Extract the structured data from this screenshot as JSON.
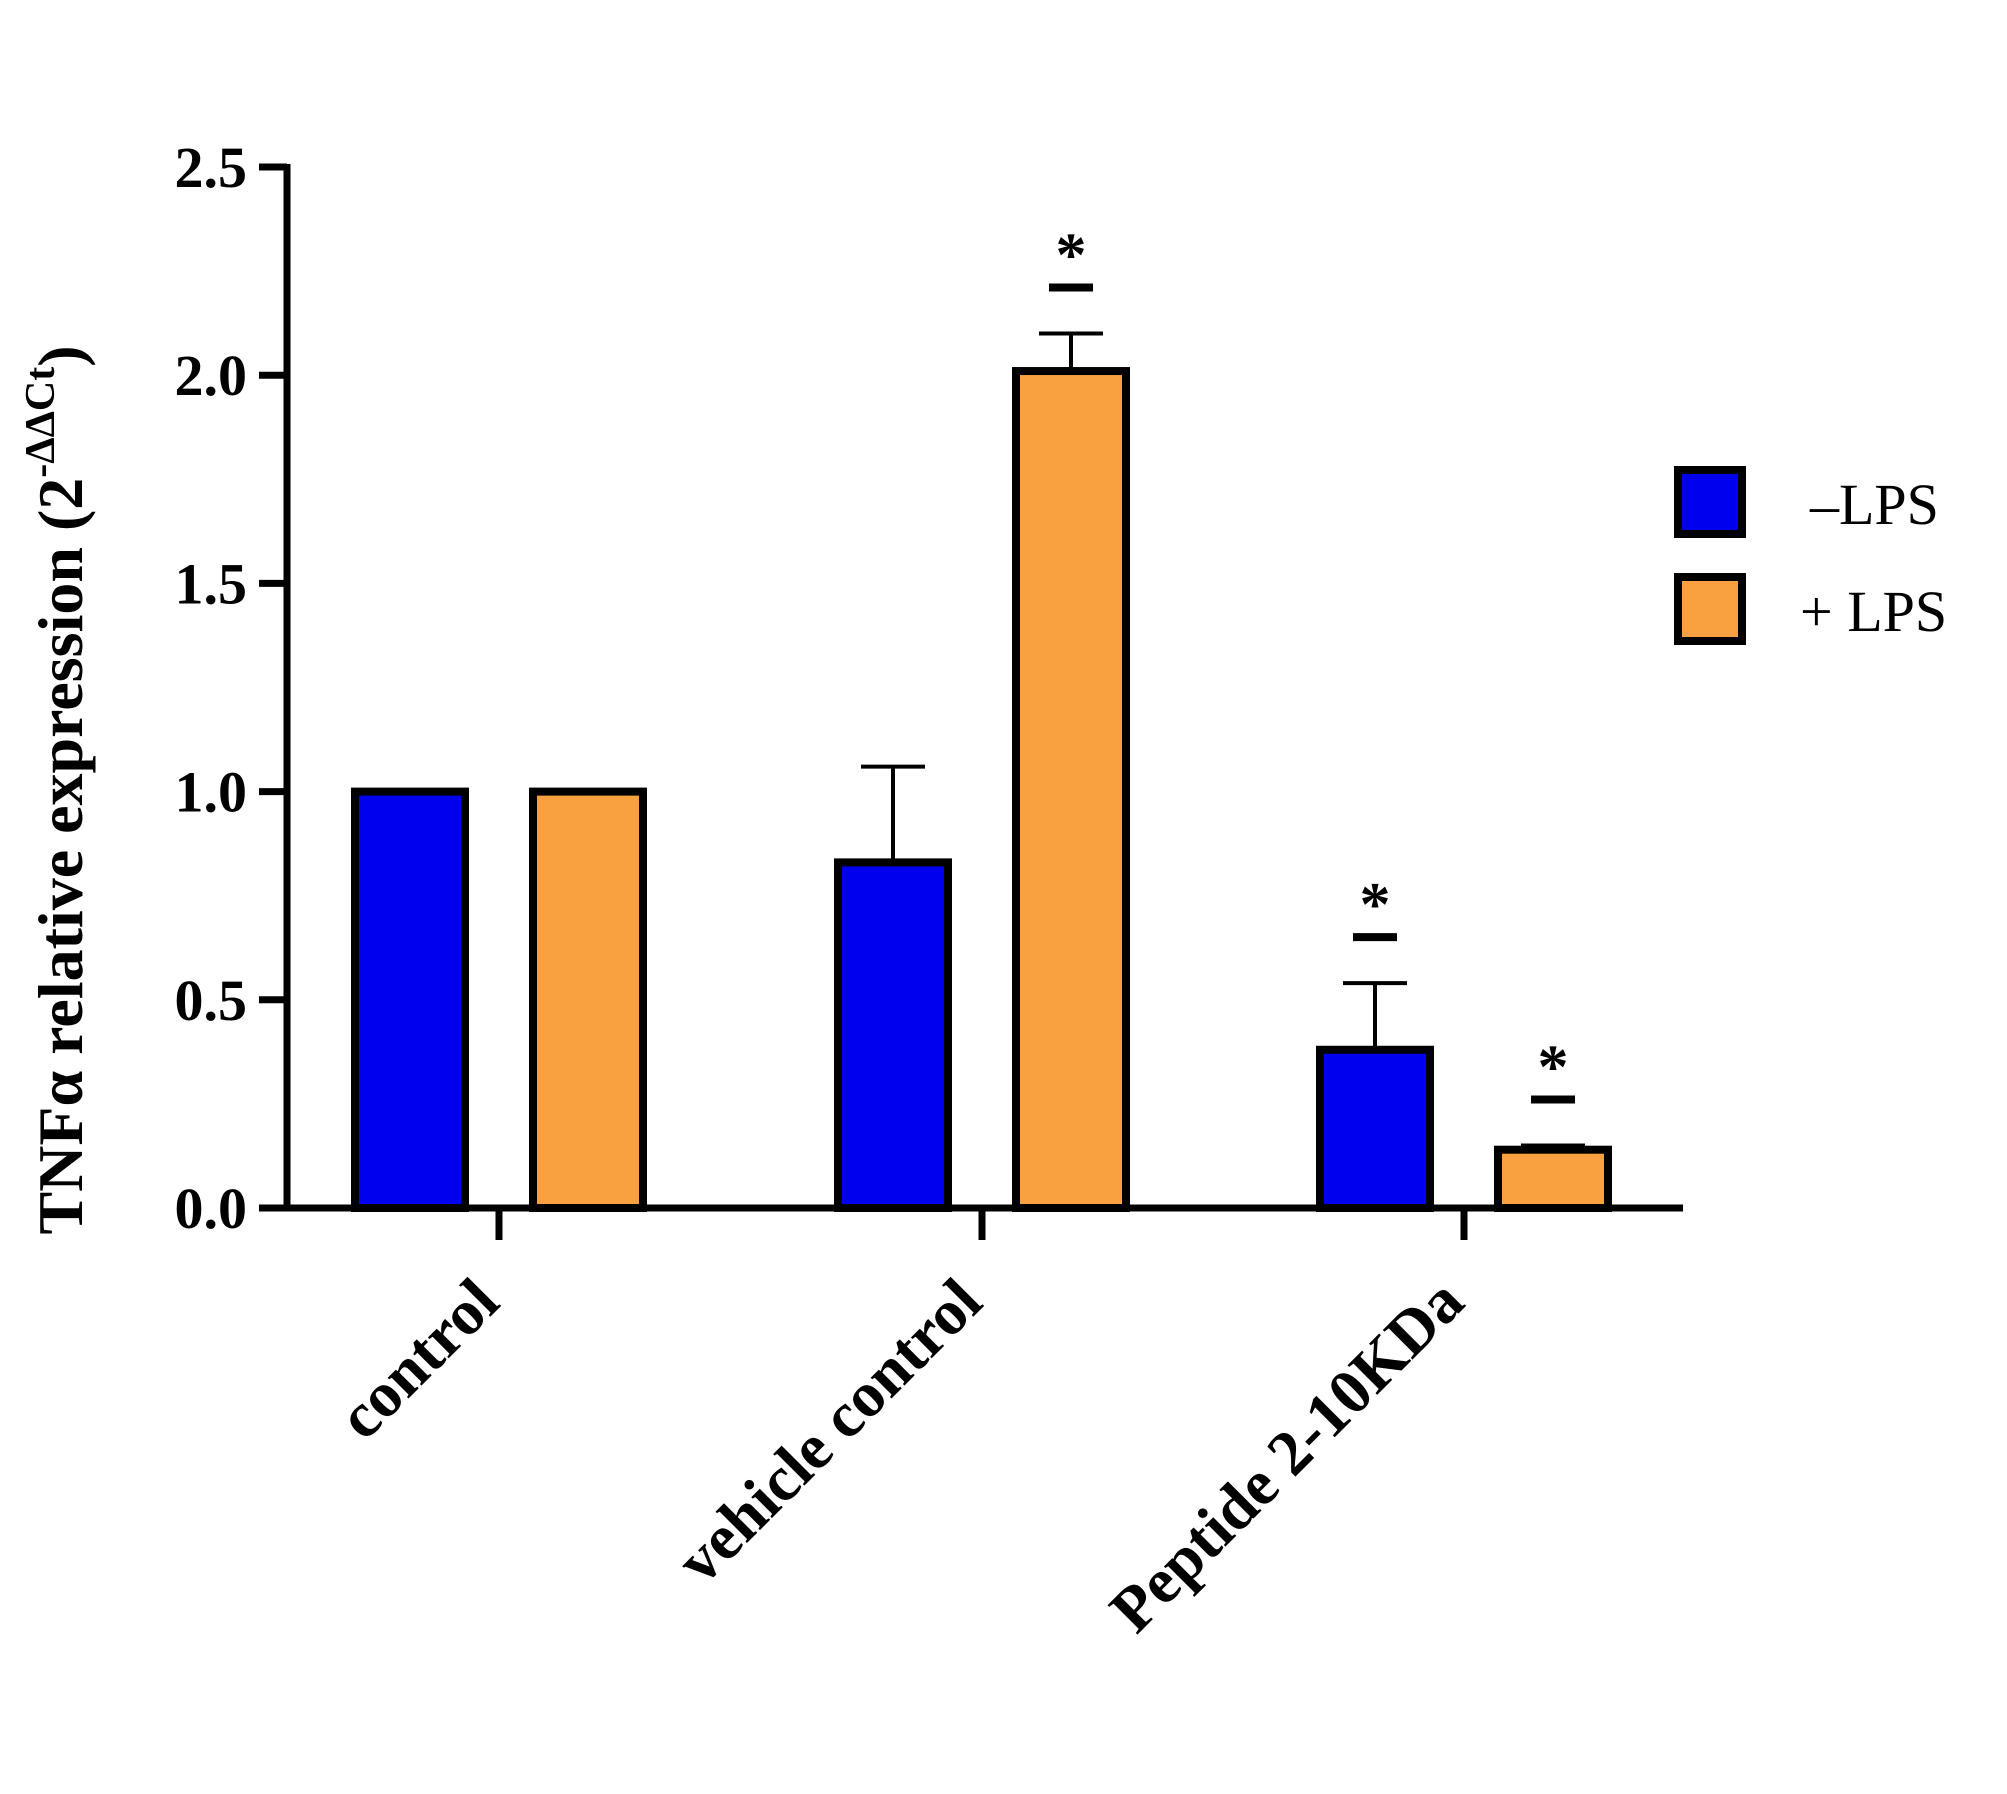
{
  "chart_data": {
    "type": "bar",
    "title": "",
    "xlabel": "",
    "ylabel": "TNFα relative expression (2",
    "ylabel_superscript": "-ΔΔCt",
    "ylabel_close": ")",
    "ylim": [
      0,
      2.5
    ],
    "yticks": [
      "0.0",
      "0.5",
      "1.0",
      "1.5",
      "2.0",
      "2.5"
    ],
    "categories": [
      "control",
      "vehicle control",
      "Peptide 2-10KDa"
    ],
    "series": [
      {
        "name": "–LPS",
        "color": "#0000ee",
        "values": [
          1.0,
          0.83,
          0.38
        ],
        "error": [
          0,
          0.23,
          0.16
        ],
        "significance": [
          "",
          "",
          "*"
        ]
      },
      {
        "name": "+ LPS",
        "color": "#f9a040",
        "values": [
          1.0,
          2.01,
          0.14
        ],
        "error": [
          0,
          0.09,
          0.01
        ],
        "significance": [
          "",
          "*",
          "*"
        ]
      }
    ],
    "legend_position": "right",
    "grid": false
  }
}
